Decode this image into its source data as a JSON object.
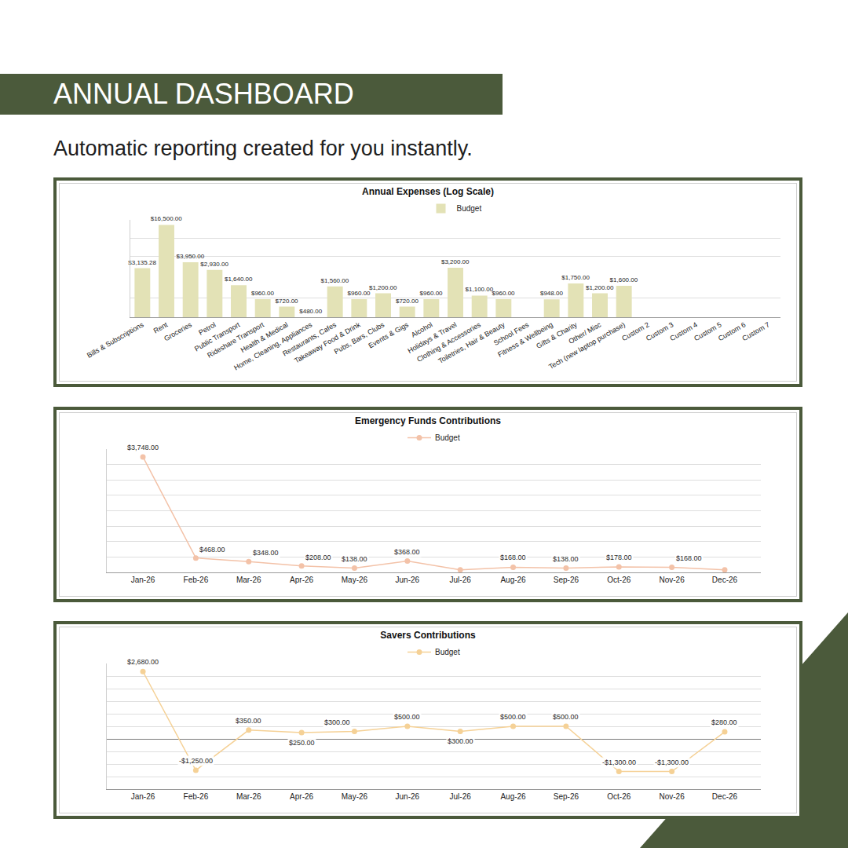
{
  "page": {
    "title": "ANNUAL DASHBOARD",
    "subtitle": "Automatic reporting created for you instantly."
  },
  "chart_data": [
    {
      "type": "bar",
      "title": "Annual Expenses (Log Scale)",
      "categories": [
        "Bills & Subscriptions",
        "Rent",
        "Groceries",
        "Petrol",
        "Public Transport",
        "Rideshare Transport",
        "Health & Medical",
        "Home, Cleaning, Appliances",
        "Restaurants, Cafes",
        "Takeaway Food & Drink",
        "Pubs, Bars, Clubs",
        "Events & Gigs",
        "Alcohol",
        "Holidays & Travel",
        "Clothing & Accessories",
        "Toiletries, Hair & Beauty",
        "School Fees",
        "Fitness & Wellbeing",
        "Gifts & Charity",
        "Other/ Misc",
        "Tech (new laptop purchase)",
        "Custom 2",
        "Custom 3",
        "Custom 4",
        "Custom 5",
        "Custom 6",
        "Custom 7"
      ],
      "series": [
        {
          "name": "Budget",
          "color": "#e3e2b6",
          "values": [
            3135.28,
            16500,
            3950,
            2930,
            1640,
            960,
            720,
            480,
            1560,
            960,
            1200,
            720,
            960,
            3200,
            1100,
            960,
            null,
            948,
            1750,
            1200,
            1600,
            null,
            null,
            null,
            null,
            null,
            null
          ],
          "value_labels": [
            "$3,135.28",
            "$16,500.00",
            "$3,950.00",
            "$2,930.00",
            "$1,640.00",
            "$960.00",
            "$720.00",
            "$480.00",
            "$1,560.00",
            "$960.00",
            "$1,200.00",
            "$720.00",
            "$960.00",
            "$3,200.00",
            "$1,100.00",
            "$960.00",
            null,
            "$948.00",
            "$1,750.00",
            "$1,200.00",
            "$1,600.00",
            null,
            null,
            null,
            null,
            null,
            null
          ]
        }
      ],
      "log": "y",
      "ylim": [
        480,
        20000
      ],
      "yticks": [
        1000,
        5000,
        10000
      ],
      "grid": true,
      "legend": "top",
      "data_labels": true,
      "tick_labels": "x"
    },
    {
      "type": "line",
      "title": "Emergency Funds Contributions",
      "categories": [
        "Jan-26",
        "Feb-26",
        "Mar-26",
        "Apr-26",
        "May-26",
        "Jun-26",
        "Jul-26",
        "Aug-26",
        "Sep-26",
        "Oct-26",
        "Nov-26",
        "Dec-26"
      ],
      "series": [
        {
          "name": "Budget",
          "color": "#f3c2a8",
          "marker": "circle",
          "values": [
            3748,
            468,
            348,
            208,
            138,
            368,
            80,
            168,
            138,
            178,
            168,
            80
          ],
          "value_labels": [
            "$3,748.00",
            "$468.00",
            "$348.00",
            "$208.00",
            "$138.00",
            "$368.00",
            null,
            "$168.00",
            "$138.00",
            "$178.00",
            "$168.00",
            null
          ]
        }
      ],
      "ylim": [
        0,
        4000
      ],
      "yticks": [
        0,
        500,
        1000,
        1500,
        2000,
        2500,
        3000,
        3500,
        4000
      ],
      "grid": true,
      "legend": "top",
      "data_labels": true,
      "tick_labels": "x"
    },
    {
      "type": "line",
      "title": "Savers Contributions",
      "categories": [
        "Jan-26",
        "Feb-26",
        "Mar-26",
        "Apr-26",
        "May-26",
        "Jun-26",
        "Jul-26",
        "Aug-26",
        "Sep-26",
        "Oct-26",
        "Nov-26",
        "Dec-26"
      ],
      "series": [
        {
          "name": "Budget",
          "color": "#f5d196",
          "marker": "circle",
          "values": [
            2680,
            -1250,
            350,
            250,
            300,
            500,
            300,
            500,
            500,
            -1300,
            -1300,
            280
          ],
          "value_labels": [
            "$2,680.00",
            "-$1,250.00",
            "$350.00",
            "$250.00",
            "$300.00",
            "$500.00",
            "$300.00",
            "$500.00",
            "$500.00",
            "-$1,300.00",
            "-$1,300.00",
            "$280.00"
          ]
        }
      ],
      "ylim": [
        -2000,
        3000
      ],
      "yticks": [
        -2000,
        -1500,
        -1000,
        -500,
        0,
        500,
        1000,
        1500,
        2000,
        2500,
        3000
      ],
      "grid": true,
      "legend": "top",
      "data_labels": true,
      "tick_labels": "x"
    }
  ]
}
